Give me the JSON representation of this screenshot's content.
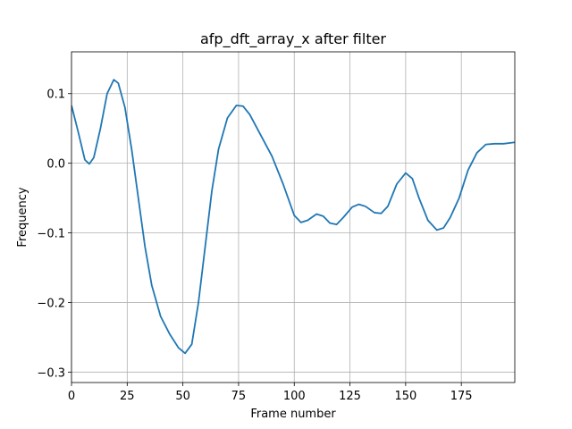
{
  "chart_data": {
    "type": "line",
    "title": "afp_dft_array_x after filter",
    "x_label": "Frame number",
    "y_label": "Frequency",
    "x": [
      0,
      3,
      6,
      8,
      10,
      13,
      16,
      19,
      21,
      24,
      27,
      30,
      33,
      36,
      40,
      44,
      48,
      51,
      54,
      57,
      60,
      63,
      66,
      70,
      74,
      77,
      80,
      85,
      90,
      95,
      100,
      103,
      106,
      110,
      113,
      116,
      119,
      122,
      126,
      129,
      132,
      136,
      139,
      142,
      146,
      150,
      153,
      156,
      160,
      164,
      167,
      170,
      174,
      178,
      182,
      186,
      190,
      194,
      199
    ],
    "series": [
      {
        "color": "#1f77b4",
        "values": [
          0.083,
          0.045,
          0.005,
          -0.001,
          0.008,
          0.05,
          0.1,
          0.12,
          0.115,
          0.08,
          0.02,
          -0.05,
          -0.12,
          -0.175,
          -0.22,
          -0.245,
          -0.265,
          -0.273,
          -0.26,
          -0.2,
          -0.12,
          -0.04,
          0.02,
          0.065,
          0.083,
          0.082,
          0.07,
          0.04,
          0.01,
          -0.03,
          -0.075,
          -0.085,
          -0.082,
          -0.073,
          -0.076,
          -0.086,
          -0.088,
          -0.078,
          -0.063,
          -0.059,
          -0.062,
          -0.071,
          -0.072,
          -0.062,
          -0.03,
          -0.014,
          -0.022,
          -0.05,
          -0.082,
          -0.096,
          -0.093,
          -0.078,
          -0.05,
          -0.01,
          0.015,
          0.027,
          0.028,
          0.028,
          0.03
        ]
      }
    ],
    "xlim": [
      0,
      199
    ],
    "xticks": [
      0,
      25,
      50,
      75,
      100,
      125,
      150,
      175
    ],
    "ylim": [
      -0.315,
      0.16
    ],
    "yticks": [
      {
        "value": -0.3,
        "label": "−0.3"
      },
      {
        "value": -0.2,
        "label": "−0.2"
      },
      {
        "value": -0.1,
        "label": "−0.1"
      },
      {
        "value": 0,
        "label": "0.0"
      },
      0.1
    ],
    "grid": true
  }
}
